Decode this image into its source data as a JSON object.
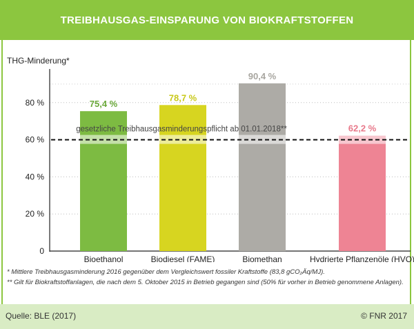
{
  "title": "TREIBHAUSGAS-EINSPARUNG VON BIOKRAFTSTOFFEN",
  "footnotes": {
    "line1": "* Mittlere Treibhausgasminderung 2016 gegenüber dem Vergleichswert fossiler Kraftstoffe (83,8 gCO₂Äq/MJ).",
    "line2": "** Gilt für Biokraftstoffanlagen, die nach dem 5. Oktober 2015 in Betrieb gegangen sind (50% für vorher in Betrieb genommene Anlagen)."
  },
  "source": "Quelle: BLE (2017)",
  "copyright": "© FNR 2017",
  "colors": {
    "brand_green": "#8cc63f",
    "light_green": "#d9ecc4"
  },
  "chart_data": {
    "type": "bar",
    "ylabel": "THG-Minderung*",
    "ylim": [
      0,
      90
    ],
    "yticks": [
      0,
      20,
      40,
      60,
      80
    ],
    "ytick_labels": [
      "0",
      "20 %",
      "40 %",
      "60 %",
      "80 %"
    ],
    "grid": false,
    "categories": [
      "Bioethanol",
      "Biodiesel (FAME)",
      "Biomethan",
      "Hydrierte Pflanzenöle (HVO)"
    ],
    "values": [
      75.4,
      78.7,
      90.4,
      62.2
    ],
    "value_labels": [
      "75,4 %",
      "78,7 %",
      "90,4 %",
      "62,2 %"
    ],
    "bar_colors": [
      "#7dbb42",
      "#d7d520",
      "#adaba6",
      "#ee8494"
    ],
    "label_colors": [
      "#6aa83a",
      "#c8c81a",
      "#a8a6a0",
      "#e8788a"
    ],
    "reference_line": {
      "value": 60,
      "label": "gesetzliche Treibhausgasminderungspflicht ab 01.01.2018**",
      "style": "dashed"
    }
  }
}
